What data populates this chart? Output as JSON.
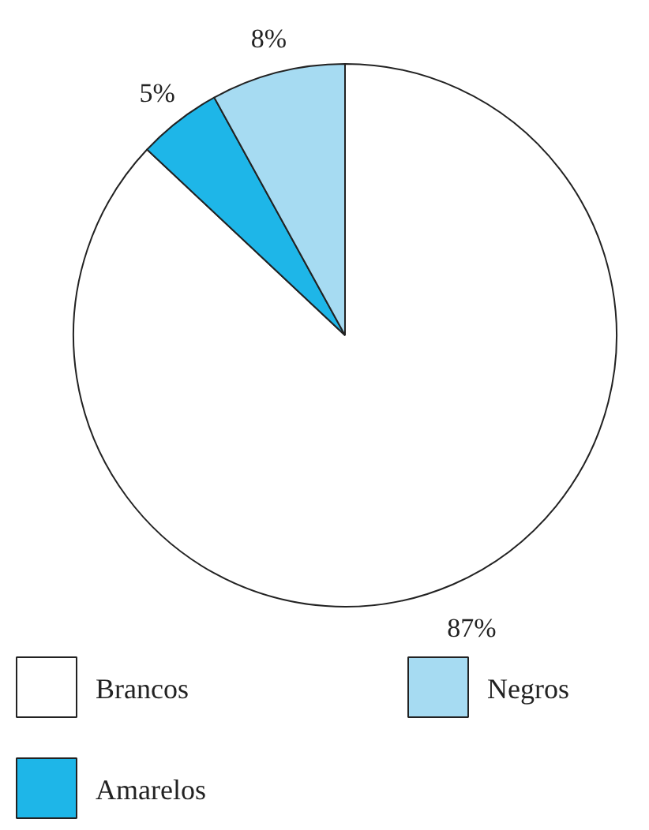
{
  "chart_data": {
    "type": "pie",
    "categories": [
      "Brancos",
      "Amarelos",
      "Negros"
    ],
    "values": [
      87,
      5,
      8
    ],
    "colors": [
      "#ffffff",
      "#1eb6e8",
      "#a6dbf2"
    ],
    "value_labels": [
      "87%",
      "5%",
      "8%"
    ],
    "legend": "bottom"
  }
}
